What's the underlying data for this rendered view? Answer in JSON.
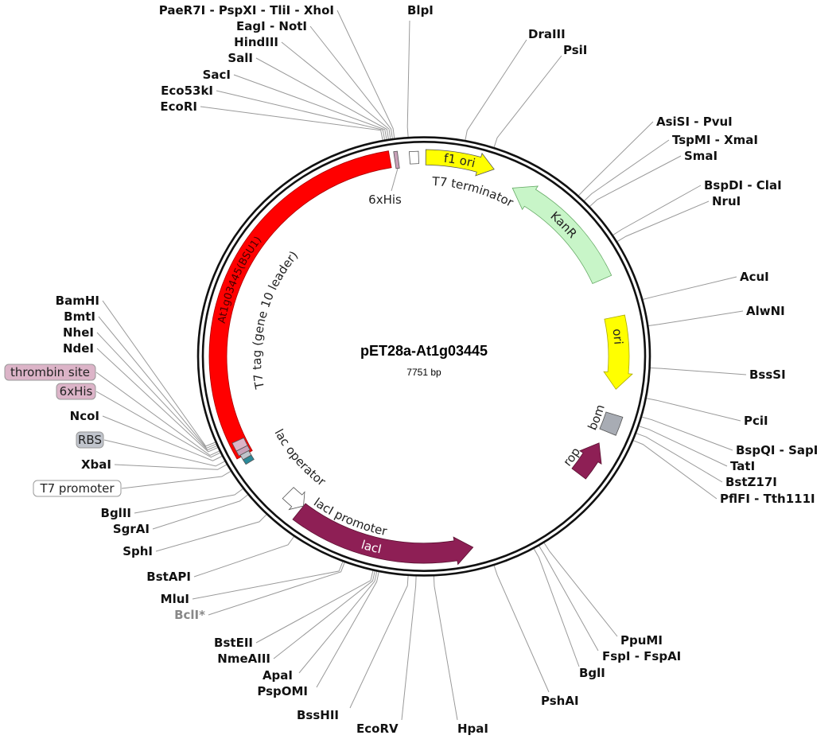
{
  "plasmid": {
    "name": "pET28a-At1g03445",
    "size": "7751 bp"
  },
  "enzymes": [
    {
      "name": "PaeR7I - PspXI - TliI - XhoI"
    },
    {
      "name": "EagI - NotI"
    },
    {
      "name": "HindIII"
    },
    {
      "name": "SalI"
    },
    {
      "name": "SacI"
    },
    {
      "name": "Eco53kI"
    },
    {
      "name": "EcoRI"
    },
    {
      "name": "BlpI"
    },
    {
      "name": "DraIII"
    },
    {
      "name": "PsiI"
    },
    {
      "name": "AsiSI - PvuI"
    },
    {
      "name": "TspMI - XmaI"
    },
    {
      "name": "SmaI"
    },
    {
      "name": "BspDI - ClaI"
    },
    {
      "name": "NruI"
    },
    {
      "name": "AcuI"
    },
    {
      "name": "AlwNI"
    },
    {
      "name": "BssSI"
    },
    {
      "name": "PciI"
    },
    {
      "name": "BspQI - SapI"
    },
    {
      "name": "TatI"
    },
    {
      "name": "BstZ17I"
    },
    {
      "name": "PflFI - Tth111I"
    },
    {
      "name": "PpuMI"
    },
    {
      "name": "FspI - FspAI"
    },
    {
      "name": "BglI"
    },
    {
      "name": "PshAI"
    },
    {
      "name": "HpaI"
    },
    {
      "name": "EcoRV"
    },
    {
      "name": "BssHII"
    },
    {
      "name": "ApaI"
    },
    {
      "name": "PspOMI"
    },
    {
      "name": "BstEII"
    },
    {
      "name": "NmeAIII"
    },
    {
      "name": "MluI"
    },
    {
      "name": "BclI*",
      "dim": true
    },
    {
      "name": "BstAPI"
    },
    {
      "name": "SphI"
    },
    {
      "name": "BglII"
    },
    {
      "name": "SgrAI"
    },
    {
      "name": "XbaI"
    },
    {
      "name": "NcoI"
    },
    {
      "name": "NdeI"
    },
    {
      "name": "NheI"
    },
    {
      "name": "BmtI"
    },
    {
      "name": "BamHI"
    }
  ],
  "boxed_labels": [
    {
      "name": "thrombin site",
      "color": "#dcb4c8"
    },
    {
      "name": "6xHis",
      "color": "#dcb4c8"
    },
    {
      "name": "RBS",
      "color": "#c0c4cc"
    },
    {
      "name": "T7 promoter",
      "color": "#ffffff"
    }
  ],
  "features": {
    "gene": {
      "name": "At1g03445(BSU1)",
      "color": "#ff0000"
    },
    "his_tag": {
      "name": "6xHis",
      "color": "#c8a0b8"
    },
    "t7_terminator": {
      "name": "T7 terminator",
      "color": "#ffffff"
    },
    "f1_ori": {
      "name": "f1 ori",
      "color": "#ffff00"
    },
    "kanr": {
      "name": "KanR",
      "color": "#c8f5c8"
    },
    "ori": {
      "name": "ori",
      "color": "#ffff00"
    },
    "bom": {
      "name": "bom",
      "color": "#a8acb4"
    },
    "rop": {
      "name": "rop",
      "color": "#8e1f55"
    },
    "laci": {
      "name": "lacI",
      "color": "#8e1f55"
    },
    "laci_promoter": {
      "name": "lacI promoter",
      "color": "#ffffff"
    },
    "t7_tag": {
      "name": "T7 tag (gene 10 leader)"
    },
    "lac_operator": {
      "name": "lac operator",
      "color": "#2a8a9a"
    }
  }
}
